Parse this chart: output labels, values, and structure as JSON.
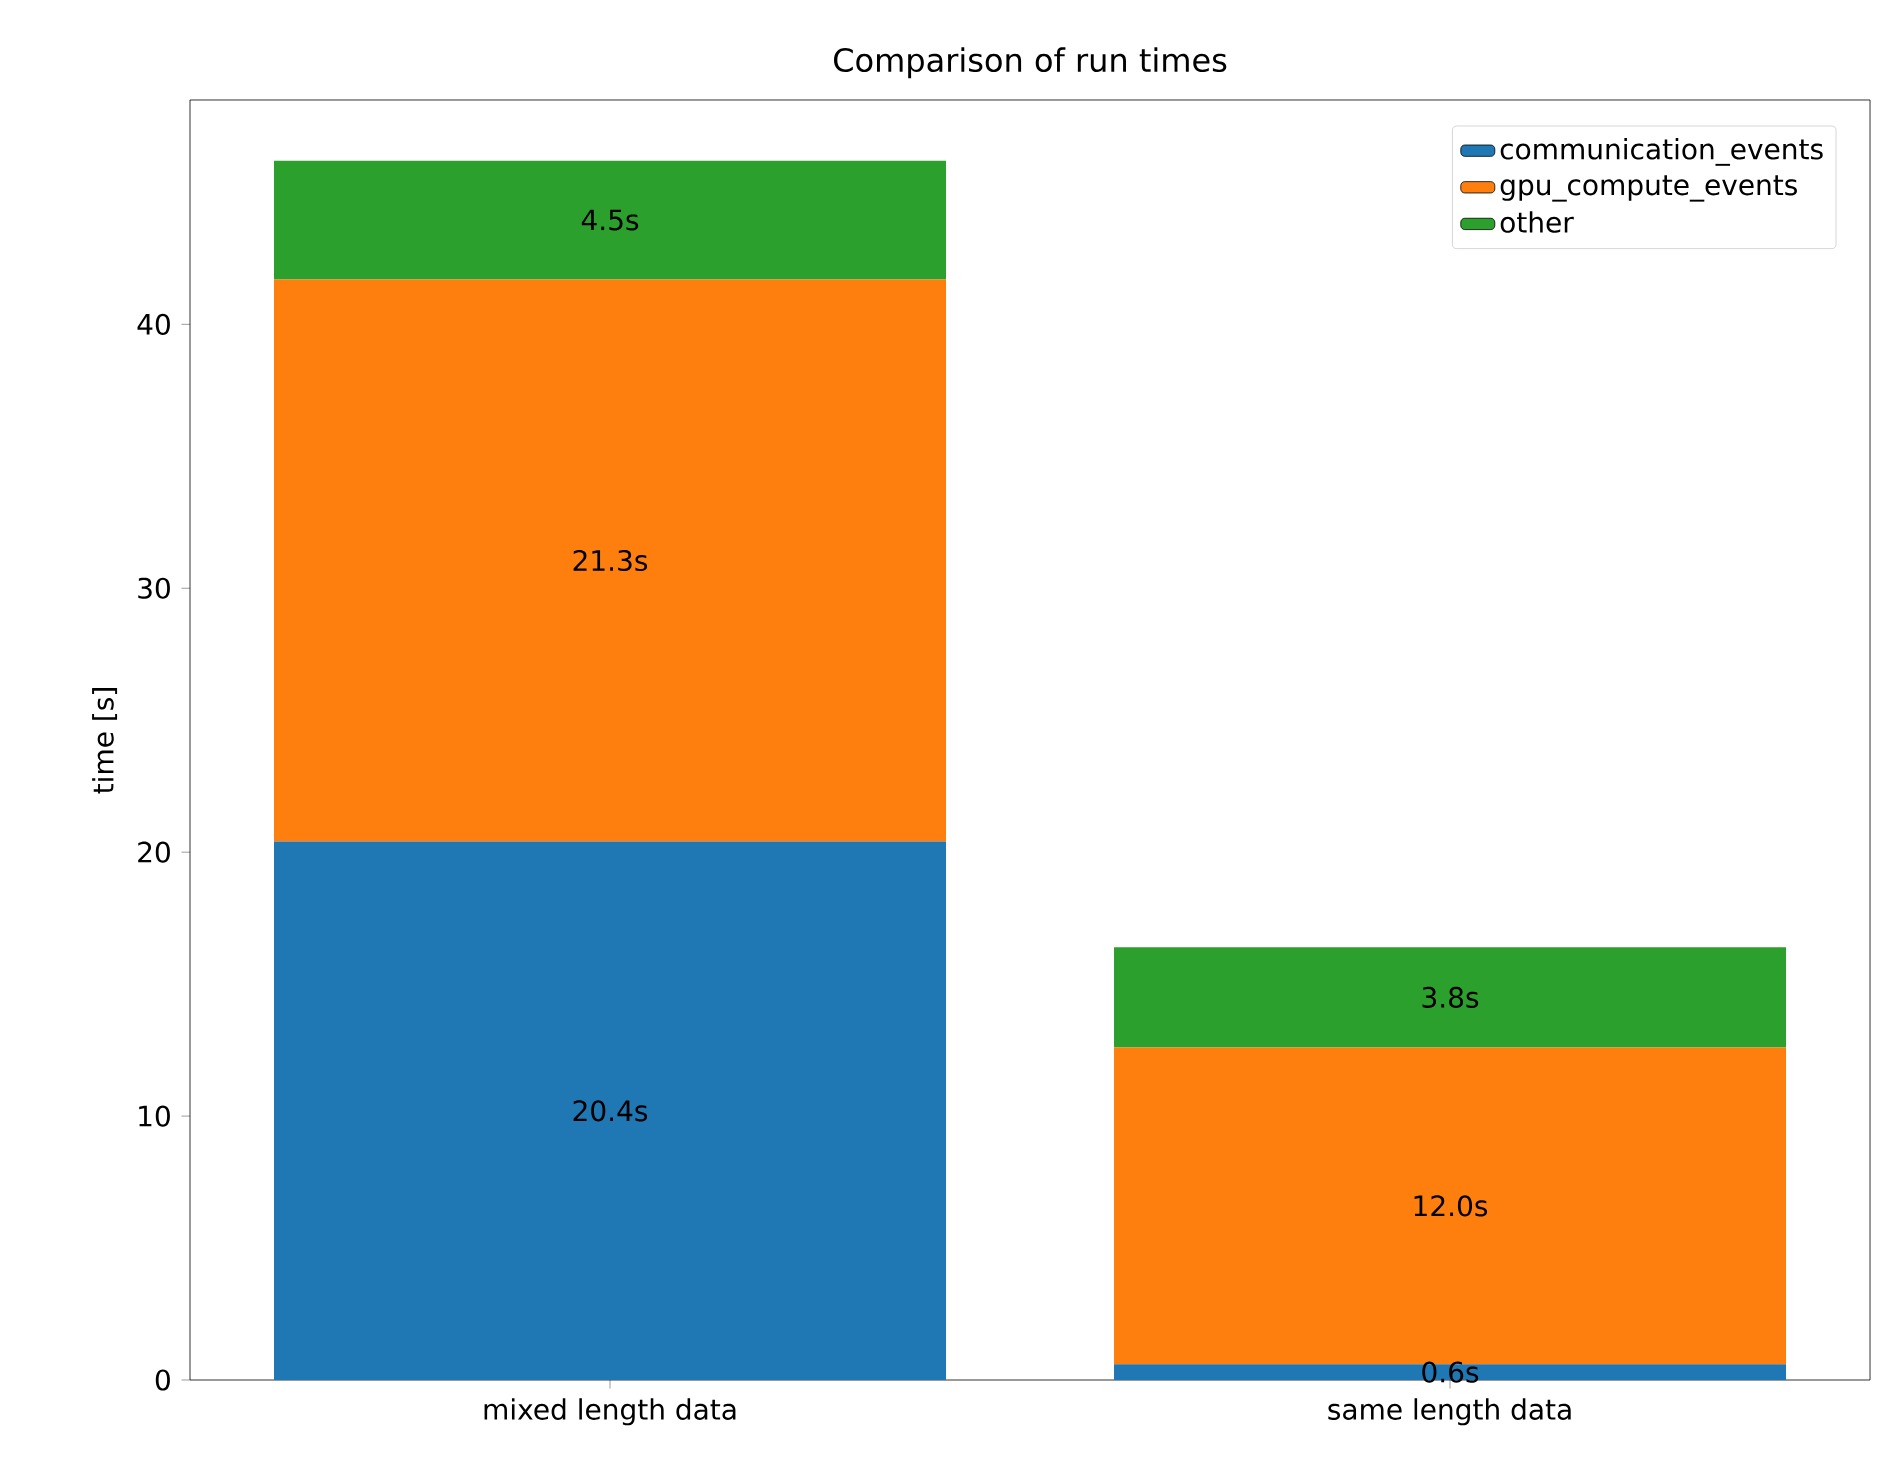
{
  "chart_data": {
    "type": "bar",
    "title": "Comparison of run times",
    "ylabel": "time [s]",
    "categories": [
      "mixed length data",
      "same length data"
    ],
    "stacked": true,
    "series": [
      {
        "name": "communication_events",
        "color": "#1f77b4",
        "values": [
          20.4,
          0.6
        ],
        "value_labels": [
          "20.4s",
          "0.6s"
        ]
      },
      {
        "name": "gpu_compute_events",
        "color": "#ff7f0e",
        "values": [
          21.3,
          12.0
        ],
        "value_labels": [
          "21.3s",
          "12.0s"
        ]
      },
      {
        "name": "other",
        "color": "#2ca02c",
        "values": [
          4.5,
          3.8
        ],
        "value_labels": [
          "4.5s",
          "3.8s"
        ]
      }
    ],
    "ylim": [
      0,
      48.5
    ],
    "yticks": [
      0,
      10,
      20,
      30,
      40
    ],
    "legend": "top right",
    "grid": false
  }
}
